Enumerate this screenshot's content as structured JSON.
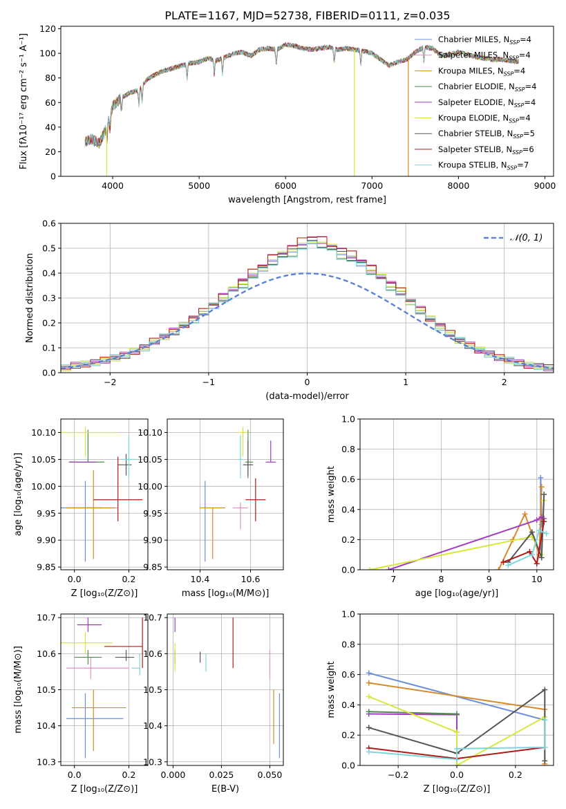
{
  "figure": {
    "title": "PLATE=1167, MJD=52738, FIBERID=0111, z=0.035"
  },
  "models": [
    {
      "name": "Chabrier MILES, N",
      "sub": "SSP",
      "n": "=4",
      "color": "#6a8fdb"
    },
    {
      "name": "Salpeter MILES, N",
      "sub": "SSP",
      "n": "=4",
      "color": "#e88ec0"
    },
    {
      "name": "Kroupa MILES, N",
      "sub": "SSP",
      "n": "=4",
      "color": "#d88a2a"
    },
    {
      "name": "Chabrier ELODIE, N",
      "sub": "SSP",
      "n": "=4",
      "color": "#4f8a4f"
    },
    {
      "name": "Salpeter ELODIE, N",
      "sub": "SSP",
      "n": "=4",
      "color": "#a13cc2"
    },
    {
      "name": "Kroupa ELODIE, N",
      "sub": "SSP",
      "n": "=4",
      "color": "#d8e83a"
    },
    {
      "name": "Chabrier STELIB, N",
      "sub": "SSP",
      "n": "=5",
      "color": "#555555"
    },
    {
      "name": "Salpeter STELIB, N",
      "sub": "SSP",
      "n": "=6",
      "color": "#b01818"
    },
    {
      "name": "Kroupa STELIB, N",
      "sub": "SSP",
      "n": "=7",
      "color": "#7fd6d8"
    }
  ],
  "chart_data": [
    {
      "id": "spectrum",
      "type": "line",
      "xlabel": "wavelength [Angstrom, rest frame]",
      "ylabel": "Flux [fλ10⁻¹⁷ erg cm⁻² s⁻¹ A⁻¹]",
      "xlim": [
        3400,
        9100
      ],
      "ylim": [
        0,
        122
      ],
      "xticks": [
        "4000",
        "5000",
        "6000",
        "7000",
        "8000",
        "9000"
      ],
      "yticks": [
        "0",
        "20",
        "40",
        "60",
        "80",
        "100",
        "120"
      ],
      "grid": false,
      "legend": "right",
      "continuum": {
        "x": [
          3680,
          3750,
          3850,
          3930,
          4000,
          4100,
          4200,
          4300,
          4400,
          4500,
          4600,
          4700,
          4800,
          4900,
          5000,
          5100,
          5200,
          5300,
          5400,
          5500,
          5600,
          5700,
          5800,
          5900,
          6000,
          6100,
          6200,
          6300,
          6400,
          6500,
          6600,
          6700,
          6800,
          6900,
          7000,
          7100,
          7200,
          7300,
          7400,
          7500,
          7600,
          7700,
          7800,
          7900,
          8000,
          8100,
          8200,
          8300,
          8400,
          8500,
          8600,
          8700
        ],
        "y": [
          28,
          30,
          27,
          40,
          57,
          64,
          68,
          70,
          79,
          83,
          86,
          88,
          90,
          92,
          93,
          96,
          94,
          97,
          100,
          101,
          98,
          103,
          104,
          103,
          107,
          106,
          104,
          103,
          104,
          105,
          103,
          104,
          103,
          102,
          100,
          95,
          90,
          93,
          95,
          101,
          105,
          104,
          98,
          99,
          101,
          99,
          97,
          96,
          95,
          95,
          94,
          93
        ]
      },
      "dropouts": [
        {
          "model": 5,
          "x": 3930,
          "to": 0
        },
        {
          "model": 5,
          "x": 6795,
          "to": 0
        },
        {
          "model": 2,
          "x": 7420,
          "to": 0
        }
      ]
    },
    {
      "id": "residual-histogram",
      "type": "histogram",
      "xlabel": "(data-model)/error",
      "ylabel": "Normed distribution",
      "xlim": [
        -2.5,
        2.5
      ],
      "ylim": [
        0,
        0.6
      ],
      "xticks": [
        "−2",
        "−1",
        "0",
        "1",
        "2"
      ],
      "yticks": [
        "0.0",
        "0.1",
        "0.2",
        "0.3",
        "0.4",
        "0.5",
        "0.6"
      ],
      "grid": true,
      "legend": "top-right",
      "reference_label": "𝒩(0, 1)",
      "reference_color": "#5b82d6",
      "bin_width": 0.1,
      "bin_start": -2.5,
      "base_values": [
        0.02,
        0.03,
        0.035,
        0.04,
        0.05,
        0.06,
        0.07,
        0.085,
        0.1,
        0.125,
        0.145,
        0.165,
        0.19,
        0.215,
        0.24,
        0.27,
        0.3,
        0.33,
        0.36,
        0.39,
        0.42,
        0.45,
        0.47,
        0.49,
        0.51,
        0.53,
        0.52,
        0.5,
        0.48,
        0.46,
        0.44,
        0.41,
        0.38,
        0.35,
        0.32,
        0.285,
        0.25,
        0.215,
        0.185,
        0.155,
        0.13,
        0.11,
        0.09,
        0.075,
        0.06,
        0.05,
        0.04,
        0.03,
        0.025,
        0.02
      ],
      "model_offsets": [
        0.0,
        0.01,
        0.02,
        -0.01,
        0.015,
        0.005,
        -0.005,
        0.02,
        -0.015
      ]
    },
    {
      "id": "age-vs-z",
      "type": "errorbar",
      "xlabel": "Z [log₁₀(Z/Z⊙)]",
      "ylabel": "age  [log₁₀(age/yr)]",
      "xlim": [
        -0.05,
        0.27
      ],
      "ylim": [
        9.845,
        10.125
      ],
      "xticks": [
        "0.0",
        "0.2"
      ],
      "yticks": [
        "9.85",
        "9.90",
        "9.95",
        "10.00",
        "10.05",
        "10.10"
      ],
      "grid": true,
      "points": [
        {
          "model": 0,
          "x": 0.04,
          "xerr": [
            0.1,
            0.06
          ],
          "y": 9.96,
          "yerr": [
            0.1,
            0.05
          ]
        },
        {
          "model": 1,
          "x": 0.06,
          "xerr": [
            0.09,
            0.1
          ],
          "y": 9.96,
          "yerr": [
            0.0,
            0.0
          ]
        },
        {
          "model": 2,
          "x": 0.07,
          "xerr": [
            0.1,
            0.08
          ],
          "y": 9.96,
          "yerr": [
            0.095,
            0.07
          ]
        },
        {
          "model": 3,
          "x": 0.05,
          "xerr": [
            0.07,
            0.06
          ],
          "y": 10.045,
          "yerr": [
            0.0,
            0.06
          ]
        },
        {
          "model": 4,
          "x": 0.03,
          "xerr": [
            0.05,
            0.05
          ],
          "y": 10.045,
          "yerr": [
            0.0,
            0.0
          ]
        },
        {
          "model": 5,
          "x": 0.04,
          "xerr": [
            0.11,
            0.12
          ],
          "y": 10.1,
          "yerr": [
            0.045,
            0.01
          ]
        },
        {
          "model": 6,
          "x": 0.19,
          "xerr": [
            0.03,
            0.02
          ],
          "y": 10.04,
          "yerr": [
            0.02,
            0.02
          ]
        },
        {
          "model": 7,
          "x": 0.16,
          "xerr": [
            0.09,
            0.09
          ],
          "y": 9.975,
          "yerr": [
            0.04,
            0.08
          ]
        },
        {
          "model": 8,
          "x": 0.2,
          "xerr": [
            0.03,
            0.03
          ],
          "y": 10.05,
          "yerr": [
            0.035,
            0.045
          ]
        }
      ]
    },
    {
      "id": "age-vs-mass",
      "type": "errorbar",
      "xlabel": "mass [log₁₀(M/M⊙)]",
      "ylabel": "",
      "xlim": [
        10.27,
        10.73
      ],
      "ylim": [
        9.845,
        10.125
      ],
      "xticks": [
        "10.4",
        "10.6"
      ],
      "yticks": [
        "9.85",
        "9.90",
        "9.95",
        "10.00",
        "10.05",
        "10.10"
      ],
      "grid": true,
      "points": [
        {
          "model": 0,
          "x": 10.42,
          "xerr": [
            0.0,
            0.0
          ],
          "y": 9.96,
          "yerr": [
            0.1,
            0.05
          ]
        },
        {
          "model": 1,
          "x": 10.56,
          "xerr": [
            0.03,
            0.03
          ],
          "y": 9.96,
          "yerr": [
            0.04,
            0.01
          ]
        },
        {
          "model": 2,
          "x": 10.45,
          "xerr": [
            0.05,
            0.05
          ],
          "y": 9.96,
          "yerr": [
            0.095,
            0.0
          ]
        },
        {
          "model": 3,
          "x": 10.59,
          "xerr": [
            0.01,
            0.02
          ],
          "y": 10.045,
          "yerr": [
            0.03,
            0.06
          ]
        },
        {
          "model": 4,
          "x": 10.68,
          "xerr": [
            0.02,
            0.02
          ],
          "y": 10.045,
          "yerr": [
            0.0,
            0.04
          ]
        },
        {
          "model": 5,
          "x": 10.57,
          "xerr": [
            0.02,
            0.02
          ],
          "y": 10.1,
          "yerr": [
            0.045,
            0.01
          ]
        },
        {
          "model": 6,
          "x": 10.59,
          "xerr": [
            0.02,
            0.02
          ],
          "y": 10.04,
          "yerr": [
            0.02,
            0.045
          ]
        },
        {
          "model": 7,
          "x": 10.62,
          "xerr": [
            0.04,
            0.04
          ],
          "y": 9.975,
          "yerr": [
            0.04,
            0.04
          ]
        },
        {
          "model": 8,
          "x": 10.56,
          "xerr": [
            0.01,
            0.01
          ],
          "y": 10.05,
          "yerr": [
            0.035,
            0.045
          ]
        }
      ]
    },
    {
      "id": "mass-weight-vs-age",
      "type": "line",
      "xlabel": "age  [log₁₀(age/yr)]",
      "ylabel": "mass weight",
      "xlim": [
        6.3,
        10.35
      ],
      "ylim": [
        0,
        1
      ],
      "xticks": [
        "7",
        "8",
        "9",
        "10"
      ],
      "yticks": [
        "0.0",
        "0.2",
        "0.4",
        "0.6",
        "0.8",
        "1.0"
      ],
      "grid": true,
      "series": [
        {
          "model": 0,
          "x": [
            10.08,
            10.08,
            10.1,
            10.1
          ],
          "y": [
            0.1,
            0.61,
            0.34,
            0.3
          ]
        },
        {
          "model": 2,
          "x": [
            9.2,
            9.5,
            9.75,
            10.05,
            10.1
          ],
          "y": [
            0.0,
            0.2,
            0.37,
            0.1,
            0.55
          ]
        },
        {
          "model": 4,
          "x": [
            6.9,
            10.0,
            10.1,
            10.15
          ],
          "y": [
            0.0,
            0.33,
            0.35,
            0.34
          ]
        },
        {
          "model": 5,
          "x": [
            6.5,
            9.9,
            10.1,
            10.15
          ],
          "y": [
            0.0,
            0.22,
            0.1,
            0.46
          ]
        },
        {
          "model": 6,
          "x": [
            9.4,
            9.9,
            10.1,
            10.15
          ],
          "y": [
            0.05,
            0.25,
            0.08,
            0.5
          ]
        },
        {
          "model": 7,
          "x": [
            9.3,
            9.85,
            10.0,
            10.15
          ],
          "y": [
            0.05,
            0.12,
            0.04,
            0.32
          ]
        },
        {
          "model": 8,
          "x": [
            9.4,
            9.9,
            10.05,
            10.2
          ],
          "y": [
            0.03,
            0.1,
            0.26,
            0.24
          ]
        }
      ]
    },
    {
      "id": "mass-vs-z",
      "type": "errorbar",
      "xlabel": "Z [log₁₀(Z/Z⊙)]",
      "ylabel": "mass [log₁₀(M/M⊙)]",
      "xlim": [
        -0.05,
        0.27
      ],
      "ylim": [
        10.29,
        10.71
      ],
      "xticks": [
        "0.0",
        "0.2"
      ],
      "yticks": [
        "10.3",
        "10.4",
        "10.5",
        "10.6",
        "10.7"
      ],
      "grid": true,
      "points": [
        {
          "model": 0,
          "x": 0.04,
          "xerr": [
            0.07,
            0.14
          ],
          "y": 10.42,
          "yerr": [
            0.11,
            0.07
          ]
        },
        {
          "model": 1,
          "x": 0.06,
          "xerr": [
            0.09,
            0.14
          ],
          "y": 10.56,
          "yerr": [
            0.03,
            0.03
          ]
        },
        {
          "model": 2,
          "x": 0.07,
          "xerr": [
            0.08,
            0.12
          ],
          "y": 10.45,
          "yerr": [
            0.12,
            0.05
          ]
        },
        {
          "model": 3,
          "x": 0.05,
          "xerr": [
            0.05,
            0.05
          ],
          "y": 10.59,
          "yerr": [
            0.02,
            0.02
          ]
        },
        {
          "model": 4,
          "x": 0.05,
          "xerr": [
            0.04,
            0.05
          ],
          "y": 10.68,
          "yerr": [
            0.02,
            0.02
          ]
        },
        {
          "model": 5,
          "x": 0.04,
          "xerr": [
            0.1,
            0.1
          ],
          "y": 10.63,
          "yerr": [
            0.03,
            0.03
          ]
        },
        {
          "model": 6,
          "x": 0.19,
          "xerr": [
            0.04,
            0.03
          ],
          "y": 10.59,
          "yerr": [
            0.01,
            0.02
          ]
        },
        {
          "model": 7,
          "x": 0.25,
          "xerr": [
            0.14,
            0.0
          ],
          "y": 10.62,
          "yerr": [
            0.06,
            0.08
          ]
        },
        {
          "model": 8,
          "x": 0.24,
          "xerr": [
            0.03,
            0.0
          ],
          "y": 10.56,
          "yerr": [
            0.02,
            0.04
          ]
        }
      ]
    },
    {
      "id": "mass-vs-ebv",
      "type": "errorbar",
      "xlabel": "E(B-V)",
      "ylabel": "",
      "xlim": [
        -0.003,
        0.057
      ],
      "ylim": [
        10.29,
        10.71
      ],
      "xticks": [
        "0.000",
        "0.025",
        "0.050"
      ],
      "yticks": [
        "10.3",
        "10.4",
        "10.5",
        "10.6",
        "10.7"
      ],
      "grid": true,
      "points": [
        {
          "model": 0,
          "x": 0.055,
          "xerr": [
            0.0,
            0.0
          ],
          "y": 10.42,
          "yerr": [
            0.11,
            0.07
          ]
        },
        {
          "model": 1,
          "x": 0.05,
          "xerr": [
            0.0,
            0.0
          ],
          "y": 10.56,
          "yerr": [
            0.03,
            0.05
          ]
        },
        {
          "model": 2,
          "x": 0.052,
          "xerr": [
            0.0,
            0.0
          ],
          "y": 10.45,
          "yerr": [
            0.1,
            0.05
          ]
        },
        {
          "model": 3,
          "x": 0.001,
          "xerr": [
            0.0,
            0.0
          ],
          "y": 10.59,
          "yerr": [
            0.02,
            0.02
          ]
        },
        {
          "model": 4,
          "x": 0.001,
          "xerr": [
            0.0,
            0.0
          ],
          "y": 10.68,
          "yerr": [
            0.02,
            0.02
          ]
        },
        {
          "model": 5,
          "x": 0.001,
          "xerr": [
            0.0,
            0.0
          ],
          "y": 10.6,
          "yerr": [
            0.05,
            0.03
          ]
        },
        {
          "model": 6,
          "x": 0.014,
          "xerr": [
            0.0,
            0.0
          ],
          "y": 10.59,
          "yerr": [
            0.015,
            0.015
          ]
        },
        {
          "model": 7,
          "x": 0.031,
          "xerr": [
            0.0,
            0.0
          ],
          "y": 10.63,
          "yerr": [
            0.07,
            0.07
          ]
        },
        {
          "model": 8,
          "x": 0.017,
          "xerr": [
            0.0,
            0.0
          ],
          "y": 10.58,
          "yerr": [
            0.03,
            0.02
          ]
        }
      ]
    },
    {
      "id": "mass-weight-vs-z",
      "type": "line",
      "xlabel": "Z [log₁₀(Z/Z⊙)]",
      "ylabel": "mass weight",
      "xlim": [
        -0.33,
        0.33
      ],
      "ylim": [
        0,
        1
      ],
      "xticks": [
        "−0.2",
        "0.0",
        "0.2"
      ],
      "yticks": [
        "0.0",
        "0.2",
        "0.4",
        "0.6",
        "0.8",
        "1.0"
      ],
      "grid": true,
      "series": [
        {
          "model": 0,
          "x": [
            -0.3,
            0.3
          ],
          "y": [
            0.61,
            0.3
          ]
        },
        {
          "model": 2,
          "x": [
            -0.3,
            0.3,
            0.3
          ],
          "y": [
            0.545,
            0.37,
            0.01
          ]
        },
        {
          "model": 4,
          "x": [
            -0.3,
            0.0,
            0.0
          ],
          "y": [
            0.34,
            0.335,
            0.22
          ]
        },
        {
          "model": 3,
          "x": [
            -0.3,
            0.0
          ],
          "y": [
            0.355,
            0.34
          ]
        },
        {
          "model": 5,
          "x": [
            -0.3,
            0.0,
            0.0,
            0.3
          ],
          "y": [
            0.455,
            0.22,
            0.0,
            0.32
          ]
        },
        {
          "model": 6,
          "x": [
            -0.3,
            0.0,
            0.3,
            0.3
          ],
          "y": [
            0.25,
            0.08,
            0.5,
            0.03
          ]
        },
        {
          "model": 7,
          "x": [
            -0.3,
            0.0,
            0.3
          ],
          "y": [
            0.115,
            0.045,
            0.12
          ]
        },
        {
          "model": 8,
          "x": [
            -0.3,
            0.0,
            0.0,
            0.3,
            0.3
          ],
          "y": [
            0.09,
            0.04,
            0.11,
            0.12,
            0.3
          ]
        }
      ]
    }
  ]
}
